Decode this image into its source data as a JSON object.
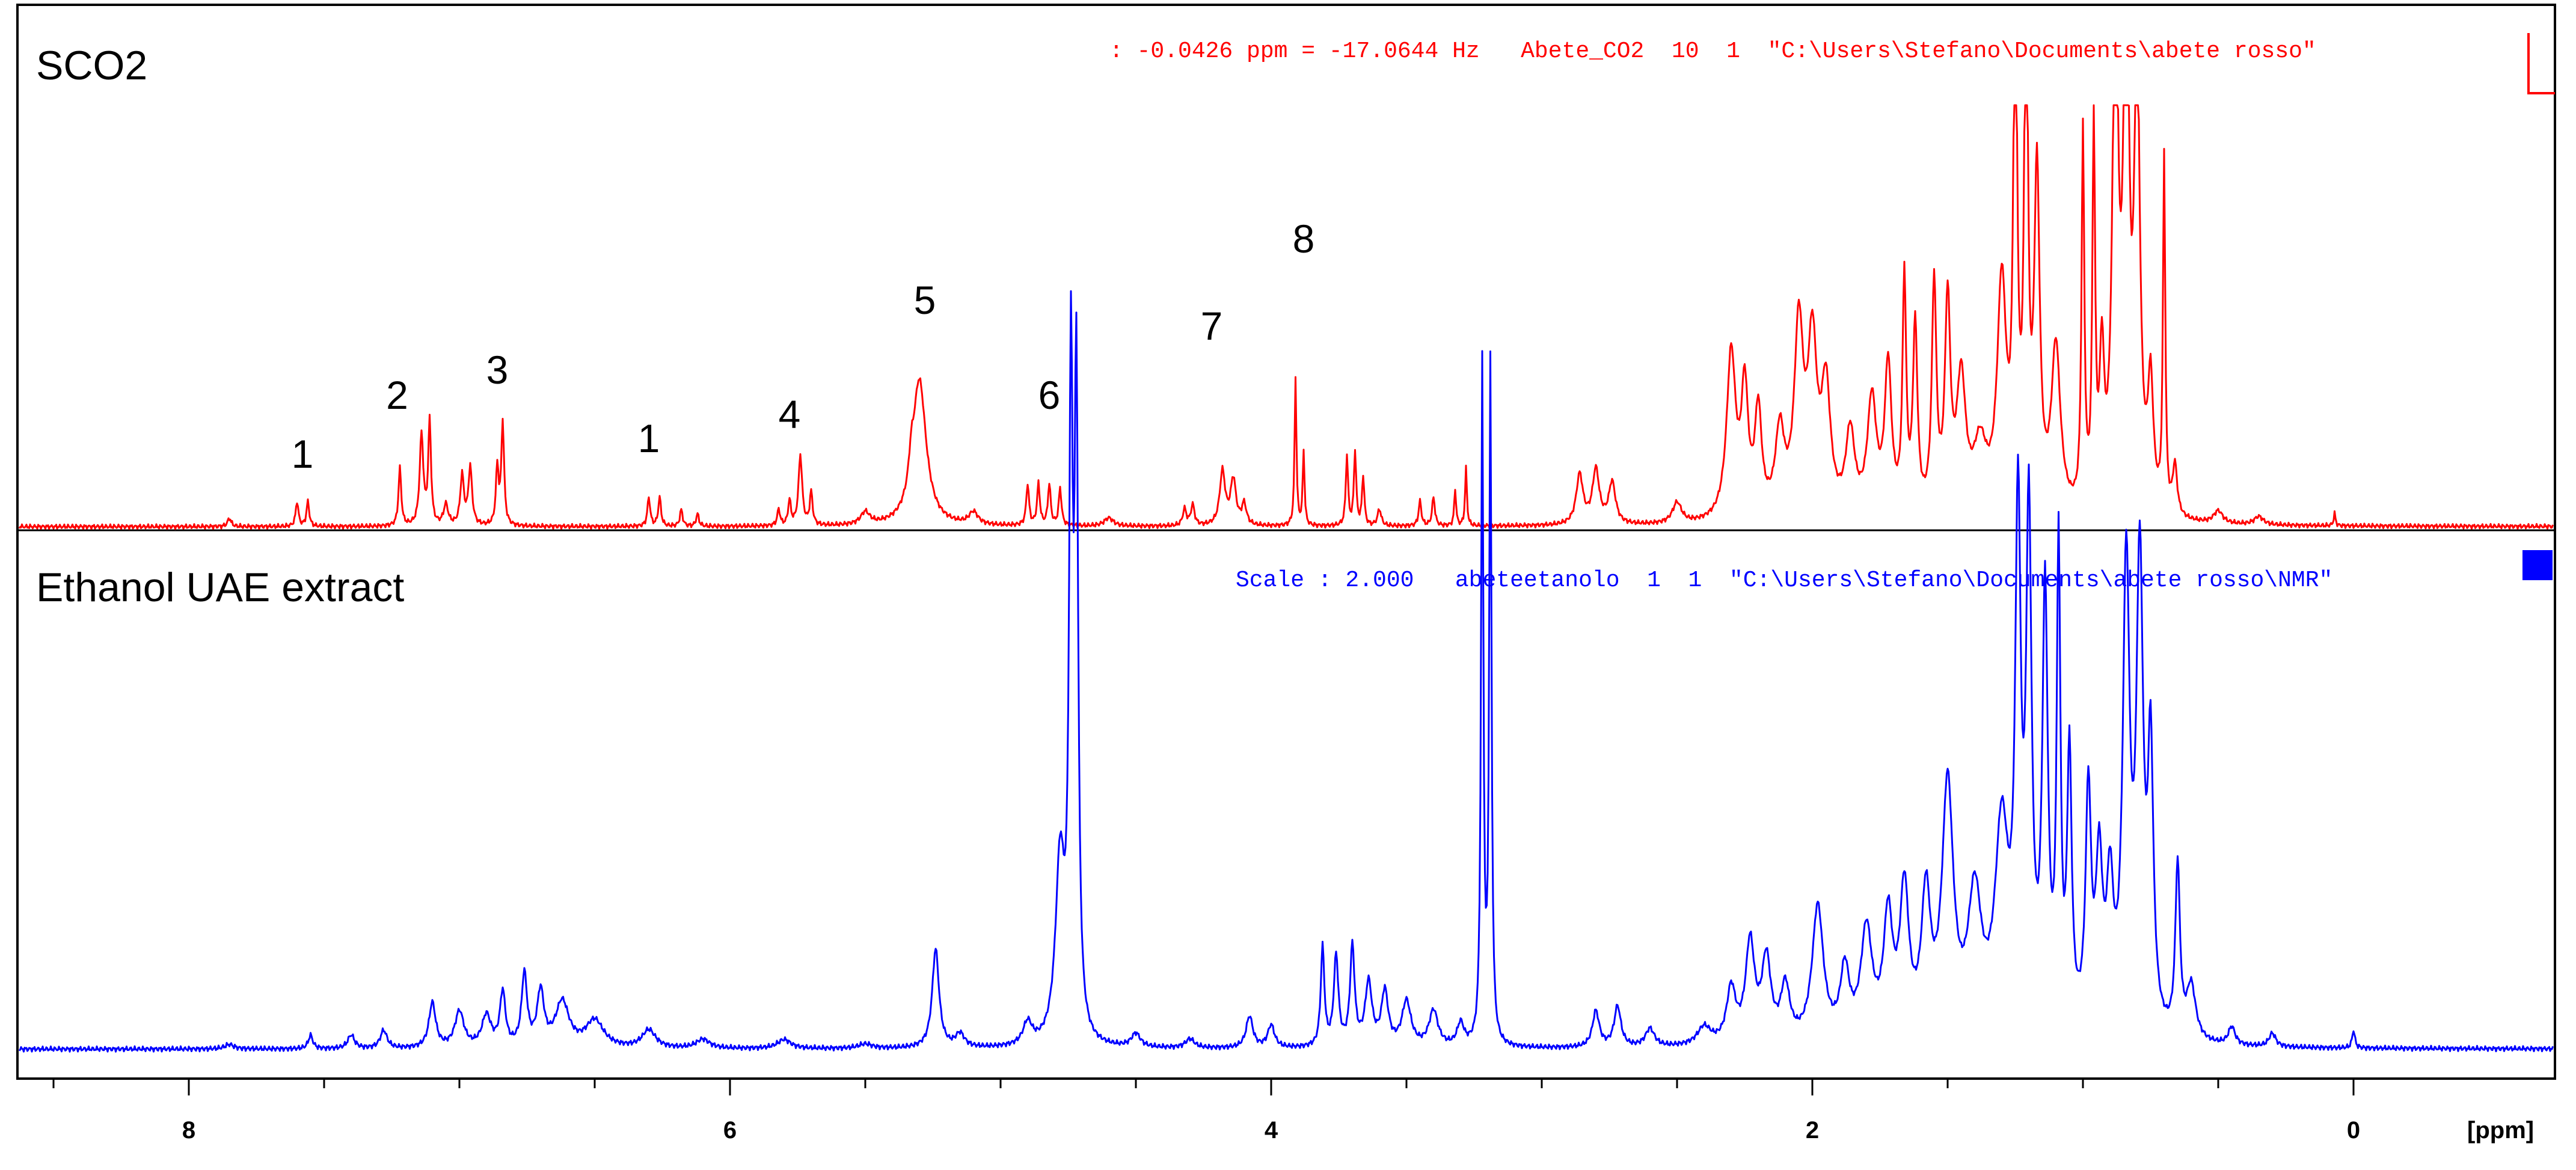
{
  "chart_data": {
    "type": "line",
    "xlabel": "[ppm]",
    "x_axis_reversed": true,
    "xlim": [
      8.6,
      -0.2
    ],
    "x_ticks": [
      8,
      6,
      4,
      2,
      0
    ],
    "grid": false,
    "panels": [
      {
        "label": "SCO2",
        "header": ": -0.0426 ppm = -17.0644 Hz   Abete_CO2  10  1  \"C:\\Users\\Stefano\\Documents\\abete rosso\"",
        "color": "#ff0000",
        "peak_labels": [
          {
            "text": "1",
            "x": 7.58
          },
          {
            "text": "2",
            "x": 7.23
          },
          {
            "text": "3",
            "x": 6.86
          },
          {
            "text": "1",
            "x": 6.3
          },
          {
            "text": "4",
            "x": 5.78
          },
          {
            "text": "5",
            "x": 5.28
          },
          {
            "text": "6",
            "x": 4.82
          },
          {
            "text": "7",
            "x": 4.22
          },
          {
            "text": "8",
            "x": 3.88
          }
        ]
      },
      {
        "label": "Ethanol UAE extract",
        "header": "Scale : 2.000   abeteetanolo  1  1  \"C:\\Users\\Stefano\\Documents\\abete rosso\\NMR\"",
        "color": "#0000ff"
      }
    ],
    "series": [
      {
        "name": "SCO2",
        "color": "#ff0000",
        "baseline": 0,
        "peaks": [
          [
            7.85,
            0.02,
            0.008
          ],
          [
            7.6,
            0.06,
            0.006
          ],
          [
            7.56,
            0.06,
            0.006
          ],
          [
            7.22,
            0.14,
            0.006
          ],
          [
            7.14,
            0.22,
            0.008
          ],
          [
            7.11,
            0.25,
            0.006
          ],
          [
            7.05,
            0.05,
            0.01
          ],
          [
            6.99,
            0.12,
            0.008
          ],
          [
            6.96,
            0.14,
            0.008
          ],
          [
            6.86,
            0.14,
            0.006
          ],
          [
            6.84,
            0.25,
            0.006
          ],
          [
            6.3,
            0.07,
            0.006
          ],
          [
            6.26,
            0.07,
            0.006
          ],
          [
            6.18,
            0.04,
            0.006
          ],
          [
            6.12,
            0.03,
            0.006
          ],
          [
            5.82,
            0.04,
            0.006
          ],
          [
            5.78,
            0.06,
            0.006
          ],
          [
            5.74,
            0.17,
            0.008
          ],
          [
            5.7,
            0.08,
            0.006
          ],
          [
            5.5,
            0.03,
            0.02
          ],
          [
            5.3,
            0.35,
            0.03
          ],
          [
            5.33,
            0.06,
            0.01
          ],
          [
            5.1,
            0.03,
            0.02
          ],
          [
            4.9,
            0.1,
            0.006
          ],
          [
            4.86,
            0.1,
            0.006
          ],
          [
            4.82,
            0.1,
            0.006
          ],
          [
            4.78,
            0.09,
            0.006
          ],
          [
            4.6,
            0.02,
            0.02
          ],
          [
            4.32,
            0.04,
            0.008
          ],
          [
            4.29,
            0.05,
            0.008
          ],
          [
            4.18,
            0.13,
            0.012
          ],
          [
            4.14,
            0.11,
            0.012
          ],
          [
            4.1,
            0.05,
            0.01
          ],
          [
            3.91,
            0.36,
            0.004
          ],
          [
            3.88,
            0.18,
            0.004
          ],
          [
            3.72,
            0.17,
            0.005
          ],
          [
            3.69,
            0.18,
            0.005
          ],
          [
            3.66,
            0.12,
            0.005
          ],
          [
            3.6,
            0.04,
            0.008
          ],
          [
            3.45,
            0.06,
            0.006
          ],
          [
            3.4,
            0.07,
            0.006
          ],
          [
            3.32,
            0.09,
            0.004
          ],
          [
            3.28,
            0.14,
            0.004
          ],
          [
            2.86,
            0.12,
            0.015
          ],
          [
            2.8,
            0.13,
            0.015
          ],
          [
            2.74,
            0.1,
            0.015
          ],
          [
            2.5,
            0.05,
            0.02
          ],
          [
            2.3,
            0.4,
            0.02
          ],
          [
            2.25,
            0.3,
            0.015
          ],
          [
            2.2,
            0.25,
            0.015
          ],
          [
            2.12,
            0.2,
            0.02
          ],
          [
            2.05,
            0.45,
            0.02
          ],
          [
            2.0,
            0.4,
            0.02
          ],
          [
            1.95,
            0.3,
            0.02
          ],
          [
            1.86,
            0.2,
            0.02
          ],
          [
            1.78,
            0.28,
            0.02
          ],
          [
            1.72,
            0.36,
            0.015
          ],
          [
            1.66,
            0.56,
            0.008
          ],
          [
            1.62,
            0.45,
            0.01
          ],
          [
            1.55,
            0.55,
            0.01
          ],
          [
            1.5,
            0.5,
            0.012
          ],
          [
            1.45,
            0.32,
            0.02
          ],
          [
            1.38,
            0.16,
            0.03
          ],
          [
            1.3,
            0.55,
            0.02
          ],
          [
            1.25,
            1.3,
            0.008
          ],
          [
            1.21,
            1.3,
            0.008
          ],
          [
            1.17,
            0.8,
            0.012
          ],
          [
            1.1,
            0.4,
            0.02
          ],
          [
            1.0,
            0.9,
            0.006
          ],
          [
            0.96,
            0.9,
            0.006
          ],
          [
            0.93,
            0.35,
            0.01
          ],
          [
            0.88,
            1.3,
            0.012
          ],
          [
            0.84,
            1.3,
            0.012
          ],
          [
            0.8,
            1.1,
            0.012
          ],
          [
            0.75,
            0.3,
            0.012
          ],
          [
            0.7,
            0.85,
            0.005
          ],
          [
            0.66,
            0.12,
            0.01
          ],
          [
            0.5,
            0.03,
            0.02
          ],
          [
            0.35,
            0.02,
            0.02
          ],
          [
            0.07,
            0.03,
            0.004
          ]
        ]
      },
      {
        "name": "Ethanol UAE extract",
        "color": "#0000ff",
        "baseline": 0,
        "peaks": [
          [
            7.85,
            0.01,
            0.02
          ],
          [
            7.55,
            0.03,
            0.01
          ],
          [
            7.4,
            0.03,
            0.015
          ],
          [
            7.28,
            0.04,
            0.015
          ],
          [
            7.1,
            0.1,
            0.015
          ],
          [
            7.0,
            0.08,
            0.02
          ],
          [
            6.9,
            0.07,
            0.02
          ],
          [
            6.84,
            0.12,
            0.012
          ],
          [
            6.76,
            0.16,
            0.012
          ],
          [
            6.7,
            0.12,
            0.015
          ],
          [
            6.62,
            0.1,
            0.03
          ],
          [
            6.5,
            0.06,
            0.04
          ],
          [
            6.3,
            0.04,
            0.03
          ],
          [
            6.1,
            0.02,
            0.03
          ],
          [
            5.8,
            0.02,
            0.03
          ],
          [
            5.5,
            0.01,
            0.03
          ],
          [
            5.24,
            0.22,
            0.015
          ],
          [
            5.15,
            0.03,
            0.02
          ],
          [
            4.9,
            0.05,
            0.02
          ],
          [
            4.78,
            0.4,
            0.02
          ],
          [
            4.74,
            1.4,
            0.008
          ],
          [
            4.72,
            1.4,
            0.008
          ],
          [
            4.5,
            0.03,
            0.02
          ],
          [
            4.3,
            0.02,
            0.02
          ],
          [
            4.08,
            0.07,
            0.015
          ],
          [
            4.0,
            0.05,
            0.015
          ],
          [
            3.81,
            0.22,
            0.008
          ],
          [
            3.76,
            0.2,
            0.01
          ],
          [
            3.7,
            0.22,
            0.01
          ],
          [
            3.64,
            0.14,
            0.015
          ],
          [
            3.58,
            0.12,
            0.015
          ],
          [
            3.5,
            0.1,
            0.02
          ],
          [
            3.4,
            0.08,
            0.02
          ],
          [
            3.3,
            0.05,
            0.015
          ],
          [
            3.22,
            1.5,
            0.005
          ],
          [
            3.19,
            1.5,
            0.005
          ],
          [
            2.8,
            0.08,
            0.015
          ],
          [
            2.72,
            0.09,
            0.015
          ],
          [
            2.6,
            0.04,
            0.02
          ],
          [
            2.4,
            0.04,
            0.03
          ],
          [
            2.3,
            0.12,
            0.02
          ],
          [
            2.23,
            0.22,
            0.02
          ],
          [
            2.17,
            0.18,
            0.02
          ],
          [
            2.1,
            0.12,
            0.02
          ],
          [
            1.98,
            0.3,
            0.025
          ],
          [
            1.88,
            0.15,
            0.02
          ],
          [
            1.8,
            0.24,
            0.025
          ],
          [
            1.72,
            0.26,
            0.02
          ],
          [
            1.66,
            0.32,
            0.02
          ],
          [
            1.58,
            0.3,
            0.02
          ],
          [
            1.5,
            0.55,
            0.025
          ],
          [
            1.4,
            0.3,
            0.03
          ],
          [
            1.3,
            0.45,
            0.03
          ],
          [
            1.24,
            1.1,
            0.012
          ],
          [
            1.2,
            1.1,
            0.012
          ],
          [
            1.14,
            0.95,
            0.012
          ],
          [
            1.09,
            1.05,
            0.008
          ],
          [
            1.05,
            0.6,
            0.01
          ],
          [
            0.98,
            0.52,
            0.012
          ],
          [
            0.94,
            0.36,
            0.015
          ],
          [
            0.9,
            0.3,
            0.015
          ],
          [
            0.84,
            1.02,
            0.015
          ],
          [
            0.79,
            1.02,
            0.015
          ],
          [
            0.75,
            0.6,
            0.012
          ],
          [
            0.65,
            0.38,
            0.01
          ],
          [
            0.6,
            0.12,
            0.02
          ],
          [
            0.45,
            0.04,
            0.015
          ],
          [
            0.3,
            0.03,
            0.015
          ],
          [
            0.0,
            0.04,
            0.006
          ]
        ]
      }
    ]
  }
}
